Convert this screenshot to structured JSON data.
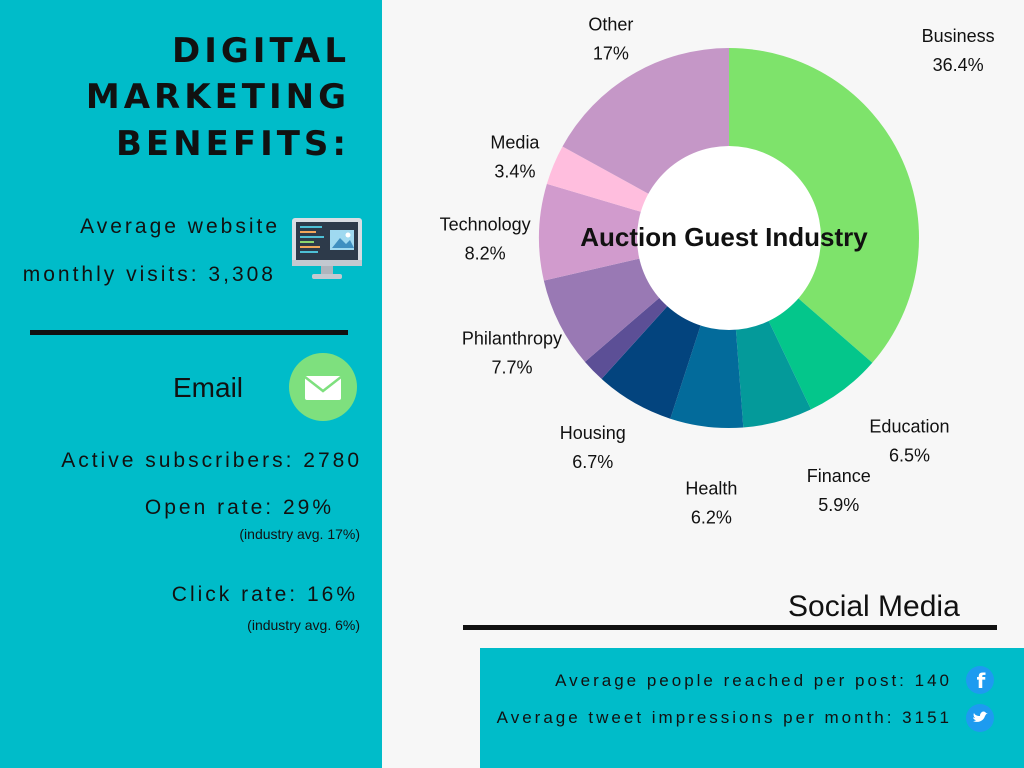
{
  "left": {
    "title_lines": [
      "DIGITAL",
      "MARKETING",
      "BENEFITS:"
    ],
    "website_line1": "Average website",
    "website_line2": "monthly visits: 3,308",
    "email_heading": "Email",
    "active_subscribers": "Active subscribers: 2780",
    "open_rate": "Open rate: 29%",
    "open_rate_note": "(industry avg. 17%)",
    "click_rate": "Click rate: 16%",
    "click_rate_note": "(industry avg. 6%)",
    "colors": {
      "panel": "#00bcc9",
      "email_icon": "#7ee07e"
    },
    "icons": [
      "monitor-icon",
      "envelope-icon"
    ]
  },
  "social": {
    "title": "Social Media",
    "people_reached": "Average people reached per post: 140",
    "tweet_impressions": "Average tweet impressions per month: 3151",
    "icons": [
      "facebook-icon",
      "twitter-icon"
    ]
  },
  "chart_data": {
    "type": "pie",
    "style": "donut",
    "title": "Auction Guest Industry",
    "slices": [
      {
        "label": "Business",
        "value": 36.4,
        "display": "36.4%",
        "color": "#7ee36b"
      },
      {
        "label": "Education",
        "value": 6.5,
        "display": "6.5%",
        "color": "#04c68b"
      },
      {
        "label": "Finance",
        "value": 5.9,
        "display": "5.9%",
        "color": "#049a9a"
      },
      {
        "label": "Health",
        "value": 6.2,
        "display": "6.2%",
        "color": "#036b9b"
      },
      {
        "label": "Housing",
        "value": 6.7,
        "display": "6.7%",
        "color": "#03447e"
      },
      {
        "label": "",
        "value": 2.0,
        "display": "",
        "color": "#5c4f96"
      },
      {
        "label": "Philanthropy",
        "value": 7.7,
        "display": "7.7%",
        "color": "#9979b4"
      },
      {
        "label": "Technology",
        "value": 8.2,
        "display": "8.2%",
        "color": "#d19bcd"
      },
      {
        "label": "Media",
        "value": 3.4,
        "display": "3.4%",
        "color": "#ffbede"
      },
      {
        "label": "Other",
        "value": 17,
        "display": "17%",
        "color": "#c597c7"
      }
    ]
  }
}
